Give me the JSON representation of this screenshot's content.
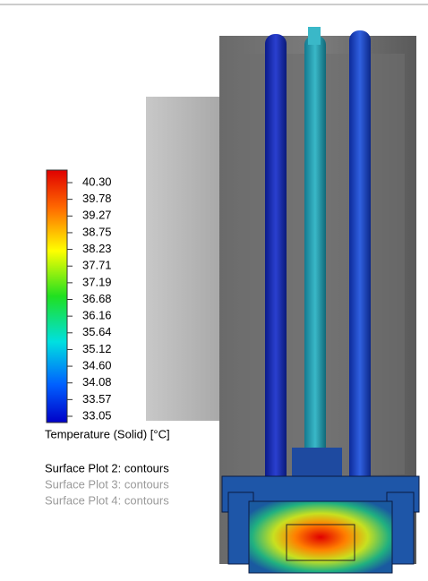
{
  "legend": {
    "ticks": [
      "40.30",
      "39.78",
      "39.27",
      "38.75",
      "38.23",
      "37.71",
      "37.19",
      "36.68",
      "36.16",
      "35.64",
      "35.12",
      "34.60",
      "34.08",
      "33.57",
      "33.05"
    ],
    "title": "Temperature (Solid) [°C]"
  },
  "plots": [
    "Surface Plot 2: contours",
    "Surface Plot 3: contours",
    "Surface Plot 4: contours"
  ]
}
